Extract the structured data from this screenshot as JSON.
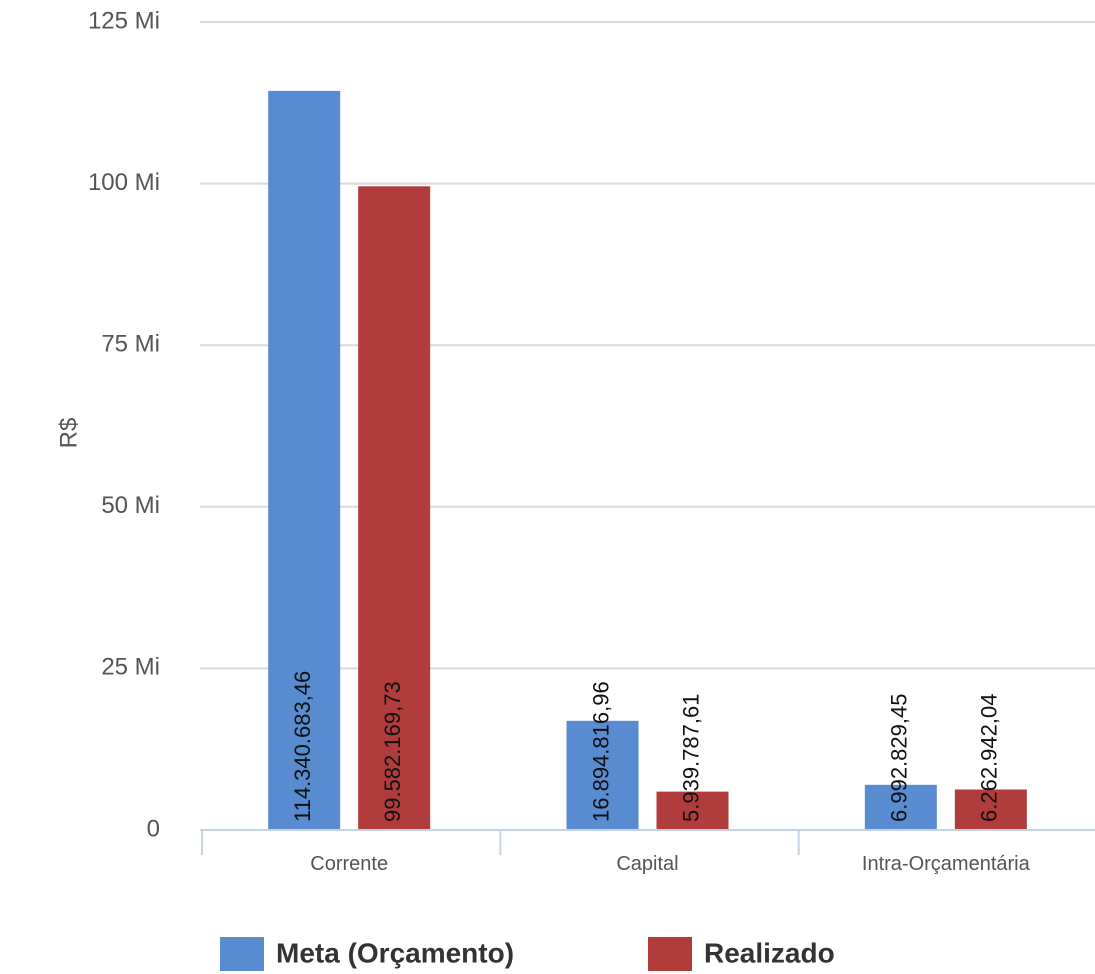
{
  "chart_data": {
    "type": "bar",
    "title": "",
    "xlabel": "",
    "ylabel": "R$",
    "ylim": [
      0,
      125000000
    ],
    "yticks": [
      {
        "value": 0,
        "label": "0"
      },
      {
        "value": 25000000,
        "label": "25 Mi"
      },
      {
        "value": 50000000,
        "label": "50 Mi"
      },
      {
        "value": 75000000,
        "label": "75 Mi"
      },
      {
        "value": 100000000,
        "label": "100 Mi"
      },
      {
        "value": 125000000,
        "label": "125 Mi"
      }
    ],
    "categories": [
      "Corrente",
      "Capital",
      "Intra-Orçamentária"
    ],
    "series": [
      {
        "name": "Meta (Orçamento)",
        "color": "#588bd0",
        "values": [
          114340683.46,
          16894816.96,
          6992829.45
        ],
        "labels": [
          "114.340.683,46",
          "16.894.816,96",
          "6.992.829,45"
        ]
      },
      {
        "name": "Realizado",
        "color": "#b03c3c",
        "values": [
          99582169.73,
          5939787.61,
          6262942.04
        ],
        "labels": [
          "99.582.169,73",
          "5.939.787,61",
          "6.262.942,04"
        ]
      }
    ],
    "grid": true,
    "legend_position": "bottom"
  }
}
